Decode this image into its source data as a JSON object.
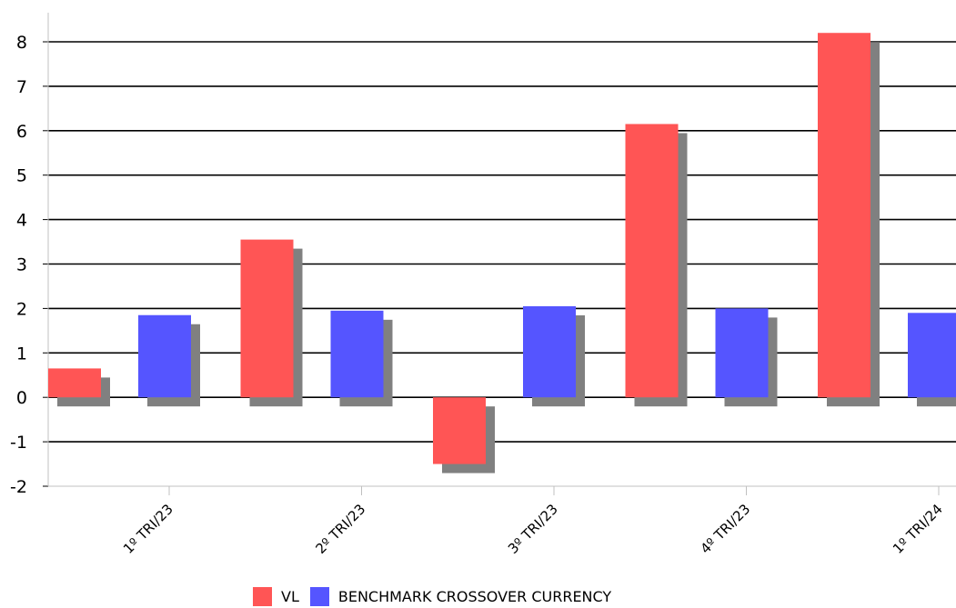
{
  "chart_data": {
    "type": "bar",
    "categories": [
      "1º TRI/23",
      "2º TRI/23",
      "3º TRI/23",
      "4º TRI/23",
      "1º TRI/24"
    ],
    "series": [
      {
        "name": "VL",
        "values": [
          0.65,
          3.55,
          -1.5,
          6.15,
          8.2
        ],
        "color": "#ff5555"
      },
      {
        "name": "BENCHMARK CROSSOVER CURRENCY",
        "values": [
          1.85,
          1.95,
          2.05,
          2.0,
          1.9
        ],
        "color": "#5555ff"
      }
    ],
    "yticks": [
      "-2",
      "-1",
      "0",
      "1",
      "2",
      "3",
      "4",
      "5",
      "6",
      "7",
      "8"
    ],
    "ylim": [
      -2,
      8
    ],
    "grid": true,
    "legend_position": "bottom",
    "shadow_color": "#808080",
    "axis_color": "#c0c0c0"
  }
}
